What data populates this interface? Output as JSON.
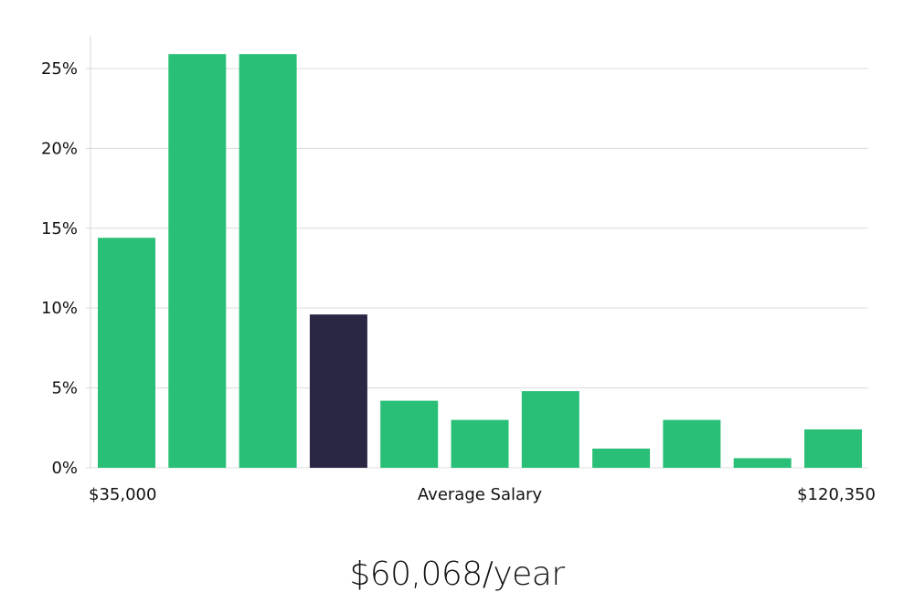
{
  "chart_data": {
    "type": "bar",
    "title": "",
    "xlabel": "Average Salary",
    "ylabel": "",
    "x_min_label": "$35,000",
    "x_max_label": "$120,350",
    "ylim": [
      0,
      27
    ],
    "yticks": [
      0,
      5,
      10,
      15,
      20,
      25
    ],
    "ytick_labels": [
      "0%",
      "5%",
      "10%",
      "15%",
      "20%",
      "25%"
    ],
    "values": [
      14.4,
      25.9,
      25.9,
      9.6,
      4.2,
      3.0,
      4.8,
      1.2,
      3.0,
      0.6,
      2.4
    ],
    "highlight_index": 3,
    "bar_color": "#2abf76",
    "highlight_color": "#2a2745",
    "grid": true
  },
  "caption": {
    "average_salary": "$60,068/year"
  }
}
